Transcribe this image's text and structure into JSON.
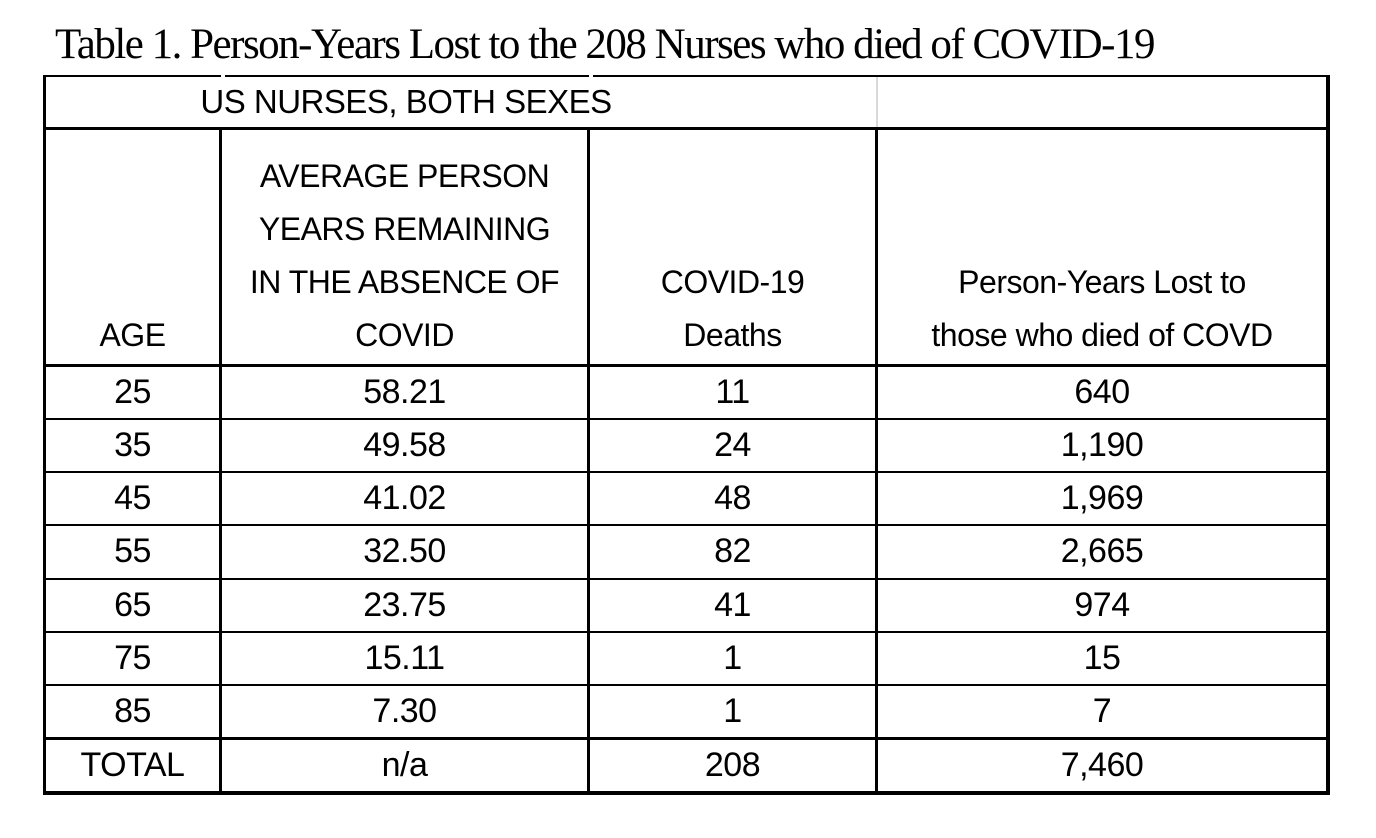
{
  "caption": "Table 1. Person-Years Lost to the 208 Nurses who died of COVID-19",
  "table": {
    "group_header": "US NURSES, BOTH SEXES",
    "header": {
      "age": "AGE",
      "avg_lines": [
        "AVERAGE PERSON",
        "YEARS REMAINING",
        "IN THE ABSENCE OF",
        "COVID"
      ],
      "deaths_lines": [
        "COVID-19",
        "Deaths"
      ],
      "pyl_lines": [
        "Person-Years Lost to",
        "those who died of COVD"
      ]
    },
    "rows": [
      {
        "age": "25",
        "avg": "58.21",
        "deaths": "11",
        "pyl": "640"
      },
      {
        "age": "35",
        "avg": "49.58",
        "deaths": "24",
        "pyl": "1,190"
      },
      {
        "age": "45",
        "avg": "41.02",
        "deaths": "48",
        "pyl": "1,969"
      },
      {
        "age": "55",
        "avg": "32.50",
        "deaths": "82",
        "pyl": "2,665"
      },
      {
        "age": "65",
        "avg": "23.75",
        "deaths": "41",
        "pyl": "974"
      },
      {
        "age": "75",
        "avg": "15.11",
        "deaths": "1",
        "pyl": "15"
      },
      {
        "age": "85",
        "avg": "7.30",
        "deaths": "1",
        "pyl": "7"
      }
    ],
    "total": {
      "label": "TOTAL",
      "avg": "n/a",
      "deaths": "208",
      "pyl": "7,460"
    }
  },
  "colors": {
    "text": "#000000",
    "border": "#000000",
    "faint_gridline": "#d9d9d9",
    "background": "#ffffff"
  }
}
